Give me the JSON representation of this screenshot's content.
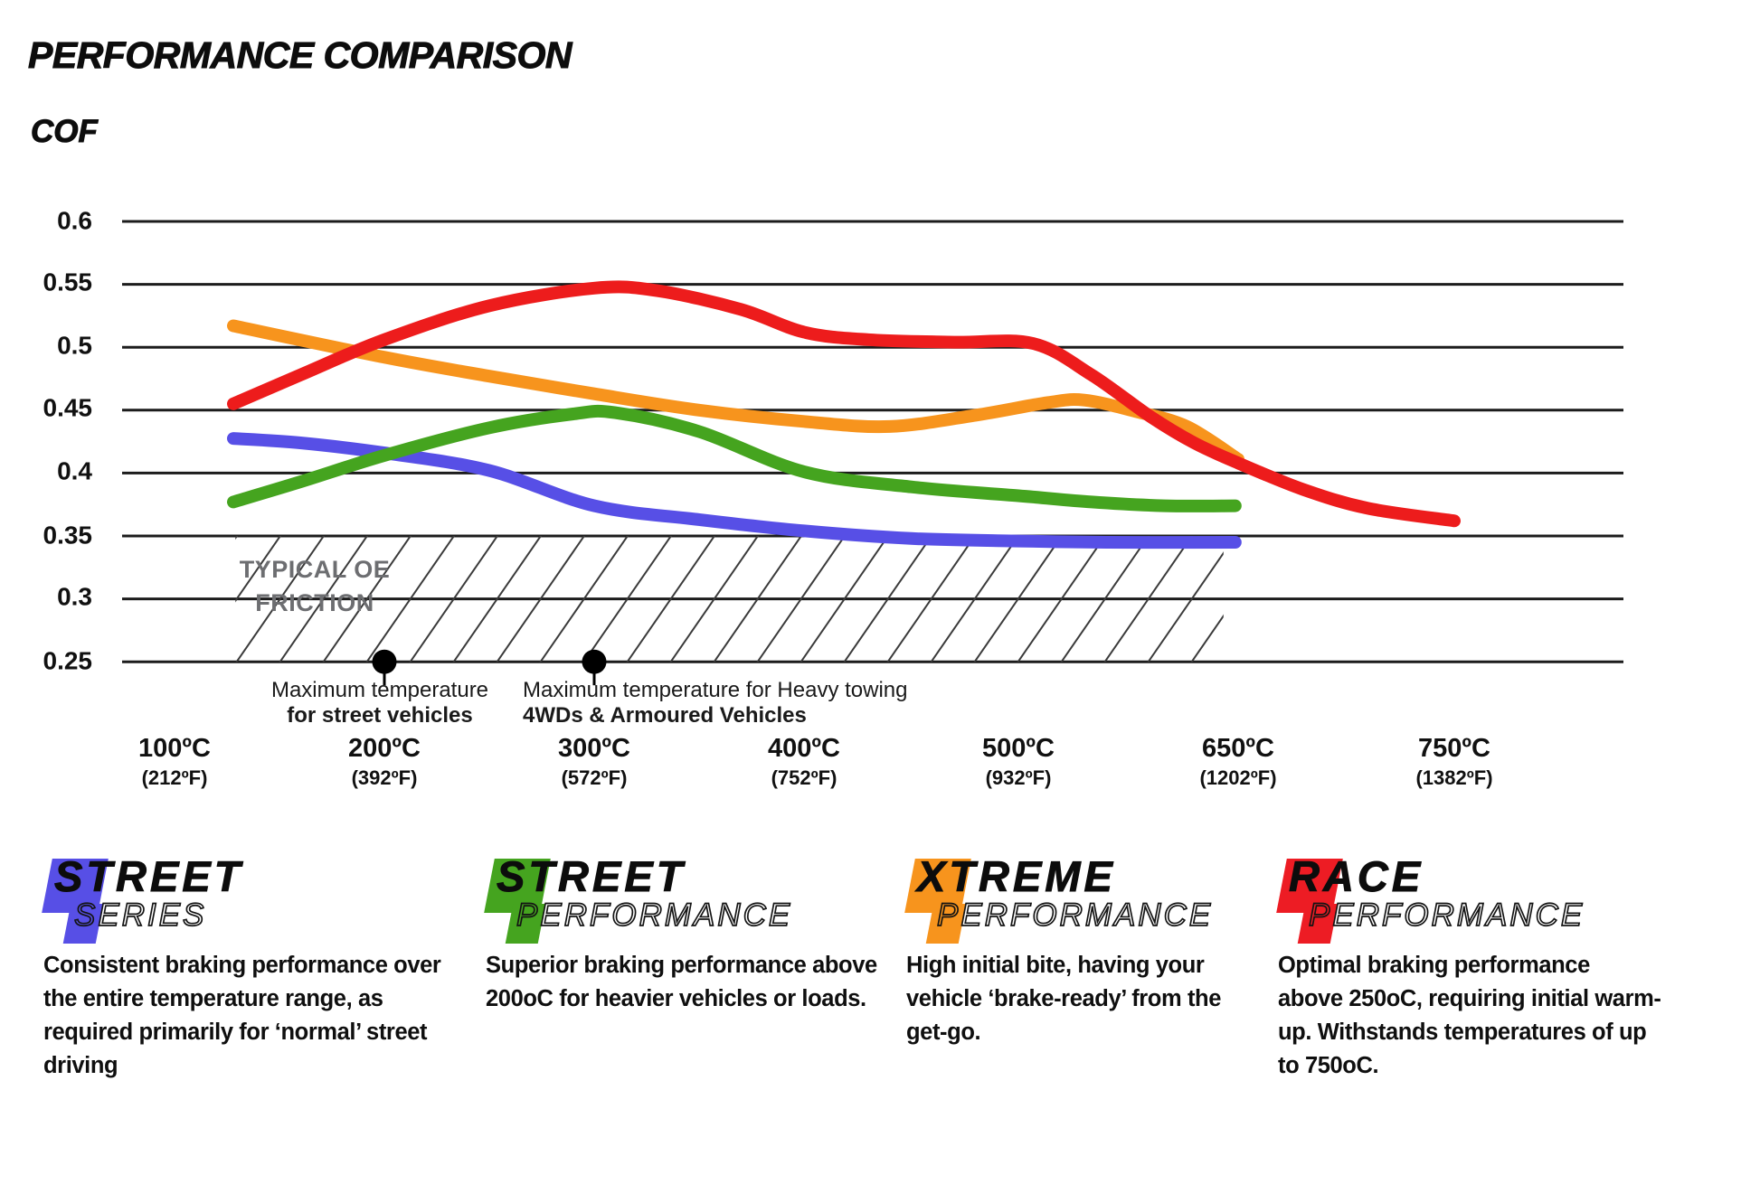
{
  "header": {
    "title": "PERFORMANCE COMPARISON",
    "ylabel": "COF"
  },
  "chart_data": {
    "type": "line",
    "title": "PERFORMANCE COMPARISON",
    "ylabel": "COF",
    "xlabel": "",
    "grid": true,
    "legend_position": "bottom",
    "ylim": [
      0.25,
      0.6
    ],
    "y_ticks": [
      0.6,
      0.55,
      0.5,
      0.45,
      0.4,
      0.35,
      0.3,
      0.25
    ],
    "y_tick_labels": [
      "0.6",
      "0.55",
      "0.5",
      "0.45",
      "0.4",
      "0.35",
      "0.3",
      "0.25"
    ],
    "x_ticks": [
      {
        "temp": 100,
        "celsius": "100ºC",
        "fahrenheit": "(212ºF)"
      },
      {
        "temp": 200,
        "celsius": "200ºC",
        "fahrenheit": "(392ºF)"
      },
      {
        "temp": 300,
        "celsius": "300ºC",
        "fahrenheit": "(572ºF)"
      },
      {
        "temp": 400,
        "celsius": "400ºC",
        "fahrenheit": "(752ºF)"
      },
      {
        "temp": 500,
        "celsius": "500ºC",
        "fahrenheit": "(932ºF)"
      },
      {
        "temp": 650,
        "celsius": "650ºC",
        "fahrenheit": "(1202ºF)"
      },
      {
        "temp": 750,
        "celsius": "750ºC",
        "fahrenheit": "(1382ºF)"
      }
    ],
    "series": [
      {
        "name": "Street Series",
        "color": "#574fe6",
        "points": [
          [
            128,
            0.4275
          ],
          [
            160,
            0.424
          ],
          [
            200,
            0.416
          ],
          [
            250,
            0.402
          ],
          [
            300,
            0.374
          ],
          [
            350,
            0.363
          ],
          [
            400,
            0.354
          ],
          [
            450,
            0.348
          ],
          [
            500,
            0.346
          ],
          [
            560,
            0.345
          ],
          [
            648,
            0.345
          ]
        ]
      },
      {
        "name": "Street Performance",
        "color": "#45a41f",
        "points": [
          [
            128,
            0.377
          ],
          [
            160,
            0.393
          ],
          [
            200,
            0.414
          ],
          [
            250,
            0.436
          ],
          [
            290,
            0.447
          ],
          [
            310,
            0.448
          ],
          [
            350,
            0.433
          ],
          [
            400,
            0.401
          ],
          [
            450,
            0.389
          ],
          [
            500,
            0.382
          ],
          [
            550,
            0.377
          ],
          [
            600,
            0.374
          ],
          [
            648,
            0.374
          ]
        ]
      },
      {
        "name": "Xtreme Performance",
        "color": "#f7941d",
        "points": [
          [
            128,
            0.517
          ],
          [
            200,
            0.492
          ],
          [
            250,
            0.477
          ],
          [
            300,
            0.463
          ],
          [
            350,
            0.45
          ],
          [
            400,
            0.441
          ],
          [
            440,
            0.437
          ],
          [
            480,
            0.446
          ],
          [
            520,
            0.456
          ],
          [
            545,
            0.458
          ],
          [
            580,
            0.449
          ],
          [
            615,
            0.437
          ],
          [
            650,
            0.411
          ]
        ]
      },
      {
        "name": "Race Performance",
        "color": "#ed1c1c",
        "points": [
          [
            128,
            0.455
          ],
          [
            160,
            0.478
          ],
          [
            200,
            0.506
          ],
          [
            250,
            0.533
          ],
          [
            300,
            0.547
          ],
          [
            330,
            0.545
          ],
          [
            370,
            0.53
          ],
          [
            400,
            0.512
          ],
          [
            430,
            0.506
          ],
          [
            470,
            0.504
          ],
          [
            510,
            0.503
          ],
          [
            550,
            0.478
          ],
          [
            590,
            0.445
          ],
          [
            620,
            0.424
          ],
          [
            650,
            0.408
          ],
          [
            680,
            0.387
          ],
          [
            710,
            0.372
          ],
          [
            750,
            0.362
          ]
        ]
      }
    ],
    "oe_band": {
      "from_cof": 0.25,
      "to_cof": 0.35,
      "from_temp": 129,
      "to_temp": 640,
      "label": "TYPICAL OE\nFRICTION",
      "label_color": "#6d6e71"
    },
    "annotations": [
      {
        "temp": 200,
        "cof": 0.25,
        "line1": "Maximum temperature",
        "line2": "for street vehicles"
      },
      {
        "temp": 300,
        "cof": 0.25,
        "line1": "Maximum temperature for Heavy towing",
        "line2": "4WDs & Armoured Vehicles"
      }
    ]
  },
  "legend": {
    "items": [
      {
        "word1": "STREET",
        "word2": "SERIES",
        "color": "#574fe6",
        "description": "Consistent braking performance over\nthe entire temperature range, as\nrequired primarily for ‘normal’ street\ndriving"
      },
      {
        "word1": "STREET",
        "word2": "PERFORMANCE",
        "color": "#45a41f",
        "description": "Superior braking performance above\n200oC for heavier vehicles or loads."
      },
      {
        "word1": "XTREME",
        "word2": "PERFORMANCE",
        "color": "#f7941d",
        "description": "High initial bite, having your\nvehicle ‘brake-ready’ from the\nget-go."
      },
      {
        "word1": "RACE",
        "word2": "PERFORMANCE",
        "color": "#ed1c24",
        "description": "Optimal braking performance\nabove 250oC, requiring initial warm-\nup. Withstands temperatures of up\nto 750oC."
      }
    ]
  }
}
